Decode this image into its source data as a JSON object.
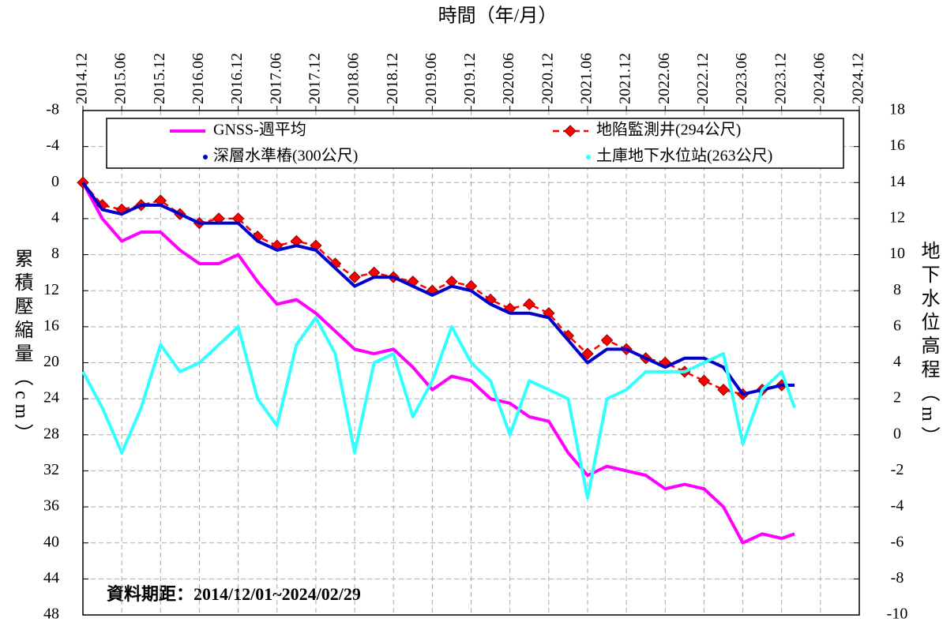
{
  "chart_data": {
    "type": "line",
    "title": "時間（年/月）",
    "ylabel": "累積壓縮量（cm）",
    "y2label": "地下水位高程（m）",
    "annotation": "資料期距：2014/12/01~2024/02/29",
    "x": [
      "2014.12",
      "2015.03",
      "2015.06",
      "2015.09",
      "2015.12",
      "2016.03",
      "2016.06",
      "2016.09",
      "2016.12",
      "2017.03",
      "2017.06",
      "2017.09",
      "2017.12",
      "2018.03",
      "2018.06",
      "2018.09",
      "2018.12",
      "2019.03",
      "2019.06",
      "2019.09",
      "2019.12",
      "2020.03",
      "2020.06",
      "2020.09",
      "2020.12",
      "2021.03",
      "2021.06",
      "2021.09",
      "2021.12",
      "2022.03",
      "2022.06",
      "2022.09",
      "2022.12",
      "2023.03",
      "2023.06",
      "2023.09",
      "2023.12",
      "2024.02"
    ],
    "xlim": [
      "2014.12",
      "2024.12"
    ],
    "xticks": [
      "2014.12",
      "2015.06",
      "2015.12",
      "2016.06",
      "2016.12",
      "2017.06",
      "2017.12",
      "2018.06",
      "2018.12",
      "2019.06",
      "2019.12",
      "2020.06",
      "2020.12",
      "2021.06",
      "2021.12",
      "2022.06",
      "2022.12",
      "2023.06",
      "2023.12",
      "2024.06",
      "2024.12"
    ],
    "ylim": [
      -8,
      48
    ],
    "y_reversed": true,
    "yticks": [
      -8,
      -4,
      0,
      4,
      8,
      12,
      16,
      20,
      24,
      28,
      32,
      36,
      40,
      44,
      48
    ],
    "y2lim": [
      -10,
      18
    ],
    "y2ticks": [
      18,
      16,
      14,
      12,
      10,
      8,
      6,
      4,
      2,
      0,
      -2,
      -4,
      -6,
      -8,
      -10
    ],
    "grid": true,
    "series": [
      {
        "name": "GNSS-週平均",
        "color": "#ff00ff",
        "values": [
          0,
          4,
          6.5,
          5.5,
          5.5,
          7.5,
          9,
          9,
          8,
          11,
          13.5,
          13,
          14.5,
          16.5,
          18.5,
          19,
          18.5,
          20.5,
          23,
          21.5,
          22,
          24,
          24.5,
          26,
          26.5,
          30,
          32.5,
          31.5,
          32,
          32.5,
          34,
          33.5,
          34,
          36,
          40,
          39,
          39.5,
          39
        ]
      },
      {
        "name": "地陷監測井(294公尺)",
        "color": "#ff0000",
        "dashed": true,
        "marker": "diamond",
        "values": [
          0,
          2.5,
          3,
          2.5,
          2,
          3.5,
          4.5,
          4,
          4,
          6,
          7,
          6.5,
          7,
          9,
          10.5,
          10,
          10.5,
          11,
          12,
          11,
          11.5,
          13,
          14,
          13.5,
          14.5,
          17,
          19,
          17.5,
          18.5,
          19.5,
          20,
          21,
          22,
          23,
          23.5,
          23,
          22.5,
          null
        ]
      },
      {
        "name": "深層水準樁(300公尺)",
        "color": "#0000cc",
        "values": [
          0,
          3,
          3.5,
          2.5,
          2.5,
          3.5,
          4.5,
          4.5,
          4.5,
          6.5,
          7.5,
          7,
          7.5,
          9.5,
          11.5,
          10.5,
          10.5,
          11.5,
          12.5,
          11.5,
          12,
          13.5,
          14.5,
          14.5,
          15,
          17.5,
          20,
          18.5,
          18.5,
          19.5,
          20.5,
          19.5,
          19.5,
          20.5,
          23.5,
          23,
          22.5,
          22.5
        ]
      },
      {
        "name": "土庫地下水位站(263公尺)",
        "color": "#33ffff",
        "axis": "y2",
        "values": [
          3.5,
          1.5,
          -1,
          1.5,
          5,
          3.5,
          4,
          5,
          6,
          2,
          0.5,
          5,
          6.5,
          4.5,
          -1,
          4,
          4.5,
          1,
          3,
          6,
          4,
          3,
          0,
          3,
          2.5,
          2,
          -3.5,
          2,
          2.5,
          3.5,
          3.5,
          3.5,
          4,
          4.5,
          -0.5,
          2.5,
          3.5,
          1.5
        ]
      }
    ]
  }
}
